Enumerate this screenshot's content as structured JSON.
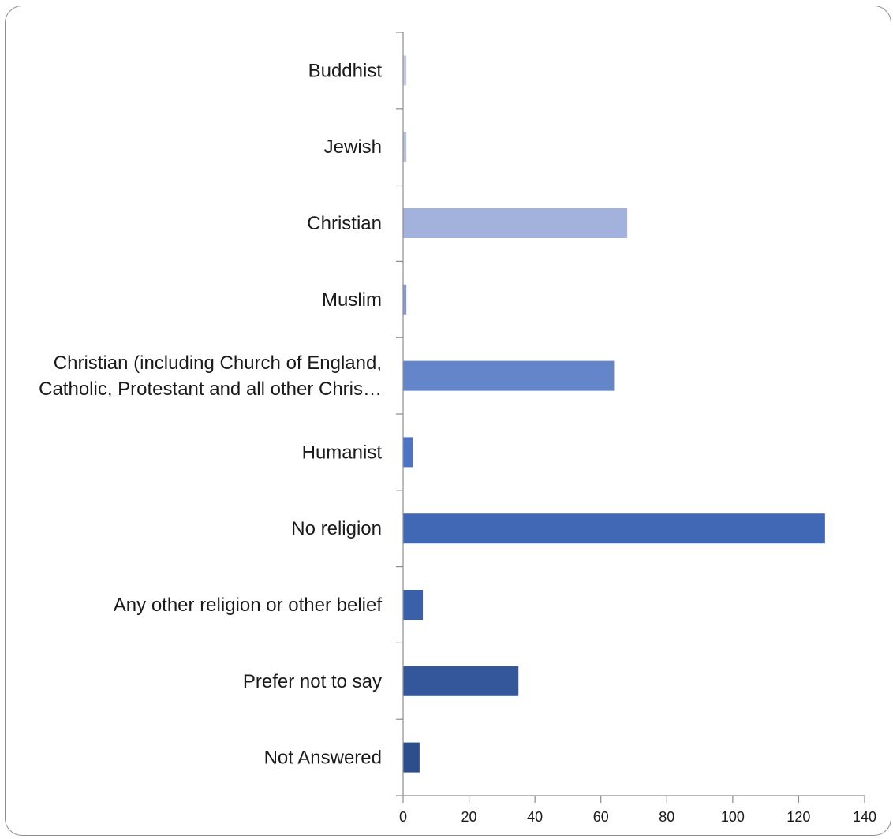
{
  "chart_data": {
    "type": "bar",
    "orientation": "horizontal",
    "categories": [
      "Buddhist",
      "Jewish",
      "Christian",
      "Muslim",
      "Christian (including Church of England, Catholic, Protestant and all other Chris…",
      "Humanist",
      "No religion",
      "Any other religion or other belief",
      "Prefer not to say",
      "Not Answered"
    ],
    "category_lines": [
      [
        "Buddhist"
      ],
      [
        "Jewish"
      ],
      [
        "Christian"
      ],
      [
        "Muslim"
      ],
      [
        "Christian (including Church of England,",
        "Catholic, Protestant and all other Chris…"
      ],
      [
        "Humanist"
      ],
      [
        "No religion"
      ],
      [
        "Any other religion or other belief"
      ],
      [
        "Prefer not to say"
      ],
      [
        "Not Answered"
      ]
    ],
    "values": [
      1,
      1,
      68,
      1,
      64,
      3,
      128,
      6,
      35,
      5
    ],
    "bar_colors": [
      "#c5cce6",
      "#b9c2e2",
      "#a3b2dd",
      "#8799d2",
      "#6585cb",
      "#4d74c3",
      "#4068b5",
      "#3a60aa",
      "#33579a",
      "#2d4e8c"
    ],
    "title": "",
    "xlabel": "",
    "ylabel": "",
    "xlim": [
      0,
      140
    ],
    "xticks": [
      0,
      20,
      40,
      60,
      80,
      100,
      120,
      140
    ],
    "grid": false,
    "legend": "none"
  }
}
